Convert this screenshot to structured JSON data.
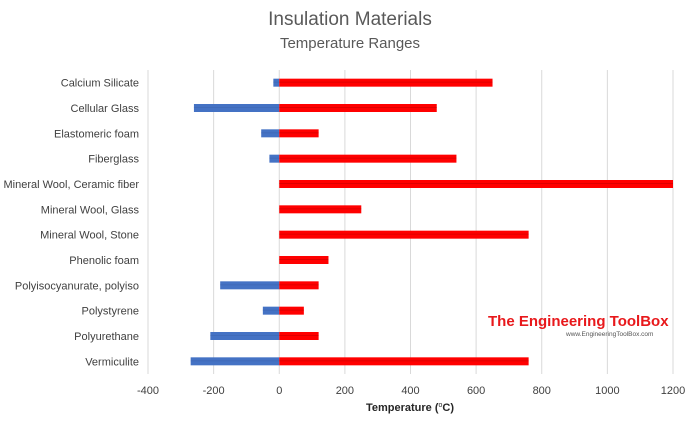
{
  "chart_data": {
    "type": "bar",
    "orientation": "horizontal",
    "title": "Insulation Materials",
    "subtitle": "Temperature Ranges",
    "xlabel": "Temperature (",
    "xlabel_sup": "o",
    "xlabel_unit": "C)",
    "ylabel": "",
    "xlim": [
      -400,
      1200
    ],
    "xticks": [
      -400,
      -200,
      0,
      200,
      400,
      600,
      800,
      1000,
      1200
    ],
    "grid": "vertical",
    "legend": "none",
    "categories": [
      "Calcium Silicate",
      "Cellular Glass",
      "Elastomeric foam",
      "Fiberglass",
      "Mineral Wool, Ceramic fiber",
      "Mineral Wool, Glass",
      "Mineral Wool, Stone",
      "Phenolic foam",
      "Polyisocyanurate, polyiso",
      "Polystyrene",
      "Polyurethane",
      "Vermiculite"
    ],
    "series": [
      {
        "color": "#4472c4",
        "values": [
          -18,
          -260,
          -55,
          -30,
          0,
          0,
          0,
          0,
          -180,
          -50,
          -210,
          -270
        ]
      },
      {
        "color": "#ff0000",
        "values": [
          650,
          480,
          120,
          540,
          1200,
          250,
          760,
          150,
          120,
          75,
          120,
          760
        ]
      }
    ]
  },
  "watermark": {
    "title": "The Engineering ToolBox",
    "url": "www.EngineeringToolBox.com"
  }
}
